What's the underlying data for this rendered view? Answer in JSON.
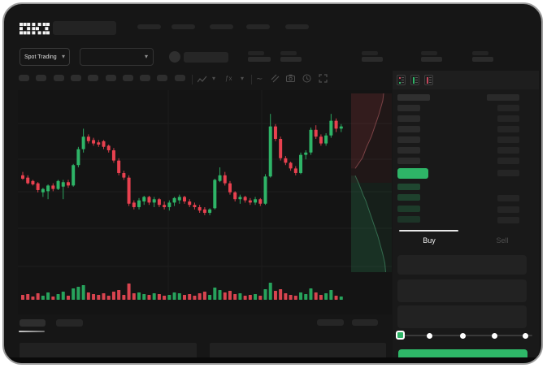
{
  "app": {
    "logo": "OKX",
    "market_selector_label": "Spot Trading"
  },
  "colors": {
    "green": "#2eb467",
    "red": "#e8414f",
    "volume_green": "#27a35c",
    "volume_red": "#d8444f",
    "buy_button": "#2eb868",
    "panel_bg": "#191919",
    "window_bg": "#161616",
    "chart_bg": "#141414"
  },
  "toolbar_icons": [
    "chart-type-icon",
    "chevron-down-icon",
    "indicator-icon",
    "chevron-down-icon",
    "trendline-icon",
    "compare-icon",
    "camera-icon",
    "history-icon",
    "fullscreen-icon"
  ],
  "skeleton": {
    "nav_blocks": 5,
    "timeframe_blocks": 10,
    "ticker_pairs": 5
  },
  "order_book": {
    "mode_icons": [
      "book-both-icon",
      "book-bids-icon",
      "book-asks-icon"
    ],
    "ask_rows": 6,
    "bid_rows": 4,
    "bid_right_has_bar": [
      false,
      true,
      true,
      true
    ],
    "bid_tints": [
      0.3,
      0.26,
      0.22,
      0.18
    ]
  },
  "trade_panel": {
    "buy_tab": "Buy",
    "sell_tab": "Sell",
    "input_fields": 3,
    "slider_stops": 5
  },
  "chart_data": {
    "type": "candlestick",
    "title": "",
    "xlabel": "",
    "ylabel": "",
    "price_scale": [
      0,
      100
    ],
    "grid": {
      "h_lines": [
        41,
        85,
        125,
        170,
        217
      ],
      "v_lines": [
        185,
        300
      ]
    },
    "candles": [
      [
        38,
        41,
        34,
        35
      ],
      [
        36,
        38,
        30,
        31
      ],
      [
        33,
        34,
        29,
        30
      ],
      [
        31,
        32,
        23,
        25
      ],
      [
        23,
        27,
        19,
        26
      ],
      [
        24,
        30,
        17,
        29
      ],
      [
        29,
        31,
        24,
        26
      ],
      [
        26,
        34,
        25,
        33
      ],
      [
        28,
        34,
        17,
        32
      ],
      [
        32,
        34,
        27,
        29
      ],
      [
        29,
        48,
        28,
        47
      ],
      [
        47,
        63,
        45,
        61
      ],
      [
        61,
        79,
        58,
        72
      ],
      [
        72,
        74,
        66,
        68
      ],
      [
        69,
        71,
        64,
        66
      ],
      [
        67,
        69,
        63,
        65
      ],
      [
        68,
        69,
        61,
        63
      ],
      [
        64,
        65,
        58,
        60
      ],
      [
        60,
        62,
        49,
        51
      ],
      [
        51,
        53,
        38,
        40
      ],
      [
        40,
        42,
        34,
        36
      ],
      [
        36,
        38,
        11,
        13
      ],
      [
        14,
        16,
        8,
        10
      ],
      [
        10,
        18,
        8,
        16
      ],
      [
        15,
        20,
        12,
        19
      ],
      [
        19,
        20,
        12,
        14
      ],
      [
        14,
        19,
        10,
        17
      ],
      [
        17,
        18,
        10,
        12
      ],
      [
        12,
        15,
        8,
        10
      ],
      [
        10,
        16,
        7,
        14
      ],
      [
        14,
        19,
        11,
        18
      ],
      [
        16,
        21,
        13,
        19
      ],
      [
        19,
        20,
        13,
        15
      ],
      [
        15,
        17,
        10,
        12
      ],
      [
        12,
        14,
        8,
        10
      ],
      [
        10,
        12,
        5,
        7
      ],
      [
        8,
        10,
        3,
        5
      ],
      [
        5,
        9,
        3,
        8
      ],
      [
        9,
        35,
        8,
        34
      ],
      [
        33,
        45,
        32,
        38
      ],
      [
        38,
        41,
        29,
        31
      ],
      [
        31,
        33,
        21,
        23
      ],
      [
        23,
        24,
        15,
        17
      ],
      [
        17,
        21,
        13,
        19
      ],
      [
        19,
        20,
        14,
        16
      ],
      [
        16,
        18,
        12,
        14
      ],
      [
        14,
        19,
        12,
        17
      ],
      [
        17,
        18,
        11,
        13
      ],
      [
        13,
        39,
        12,
        37
      ],
      [
        37,
        92,
        36,
        81
      ],
      [
        81,
        83,
        68,
        70
      ],
      [
        70,
        72,
        51,
        53
      ],
      [
        53,
        55,
        47,
        49
      ],
      [
        49,
        50,
        42,
        44
      ],
      [
        44,
        46,
        38,
        40
      ],
      [
        40,
        58,
        39,
        56
      ],
      [
        56,
        60,
        52,
        58
      ],
      [
        58,
        80,
        56,
        78
      ],
      [
        78,
        82,
        70,
        72
      ],
      [
        72,
        74,
        64,
        66
      ],
      [
        66,
        75,
        64,
        73
      ],
      [
        73,
        92,
        71,
        86
      ],
      [
        86,
        88,
        76,
        79
      ],
      [
        79,
        83,
        76,
        81
      ]
    ],
    "volumes": [
      6,
      7,
      4,
      8,
      5,
      9,
      4,
      7,
      10,
      5,
      14,
      16,
      18,
      9,
      7,
      6,
      8,
      5,
      10,
      12,
      6,
      20,
      8,
      9,
      7,
      6,
      8,
      7,
      5,
      6,
      9,
      8,
      6,
      7,
      5,
      8,
      10,
      6,
      15,
      12,
      9,
      11,
      7,
      8,
      5,
      6,
      7,
      5,
      13,
      21,
      11,
      13,
      8,
      6,
      5,
      9,
      7,
      14,
      9,
      6,
      8,
      12,
      5,
      4
    ],
    "depth": {
      "asks": [
        [
          0.1,
          0.42
        ],
        [
          0.16,
          0.4
        ],
        [
          0.22,
          0.38
        ],
        [
          0.28,
          0.36
        ],
        [
          0.33,
          0.33
        ],
        [
          0.38,
          0.3
        ],
        [
          0.44,
          0.27
        ],
        [
          0.5,
          0.24
        ],
        [
          0.56,
          0.2
        ],
        [
          0.62,
          0.16
        ],
        [
          0.68,
          0.12
        ],
        [
          0.73,
          0.08
        ],
        [
          0.78,
          0.04
        ],
        [
          0.8,
          0.0
        ]
      ],
      "bids": [
        [
          0.1,
          0.46
        ],
        [
          0.18,
          0.5
        ],
        [
          0.25,
          0.54
        ],
        [
          0.3,
          0.57
        ],
        [
          0.36,
          0.6
        ],
        [
          0.42,
          0.64
        ],
        [
          0.48,
          0.68
        ],
        [
          0.54,
          0.72
        ],
        [
          0.6,
          0.76
        ],
        [
          0.66,
          0.8
        ],
        [
          0.72,
          0.85
        ],
        [
          0.78,
          0.9
        ],
        [
          0.83,
          0.95
        ],
        [
          0.85,
          1.0
        ]
      ]
    }
  }
}
